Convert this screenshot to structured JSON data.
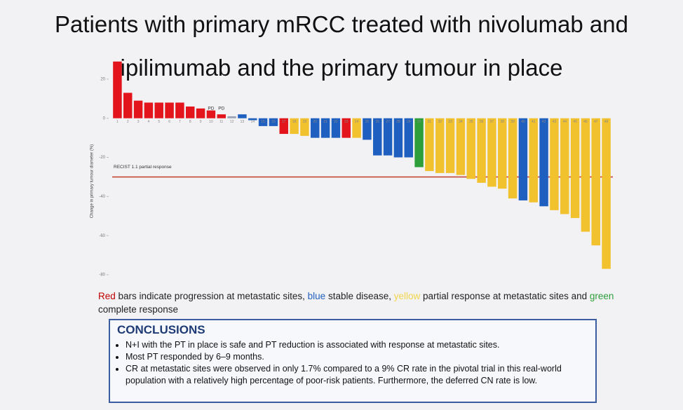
{
  "title": "Patients with primary mRCC treated with nivolumab and ipilimumab and the primary tumour in place",
  "chart_data": {
    "type": "bar",
    "y_label": "Change in primary tumour diameter (%)",
    "categories": [
      "1",
      "2",
      "3",
      "4",
      "5",
      "6",
      "7",
      "8",
      "9",
      "10",
      "11",
      "12",
      "13",
      "14",
      "15",
      "16",
      "17",
      "18",
      "19",
      "20",
      "21",
      "22",
      "23",
      "24",
      "25",
      "26",
      "27",
      "28",
      "29",
      "30",
      "31",
      "32",
      "33",
      "34",
      "35",
      "36",
      "37",
      "38",
      "39",
      "40",
      "41",
      "42",
      "43",
      "44",
      "45",
      "46",
      "47",
      "48"
    ],
    "values": [
      29,
      13,
      9,
      8,
      8,
      8,
      8,
      6,
      5,
      4,
      2,
      1,
      2,
      -1,
      -4,
      -4,
      -8,
      -8,
      -9,
      -10,
      -10,
      -10,
      -10,
      -10,
      -11,
      -19,
      -19,
      -20,
      -20,
      -25,
      -27,
      -28,
      -28,
      -29,
      -31,
      -33,
      -35,
      -36,
      -41,
      -42,
      -43,
      -45,
      -47,
      -49,
      -51,
      -58,
      -65,
      -77
    ],
    "colors": [
      "#e3141c",
      "#e3141c",
      "#e3141c",
      "#e3141c",
      "#e3141c",
      "#e3141c",
      "#e3141c",
      "#e3141c",
      "#e3141c",
      "#e3141c",
      "#e3141c",
      "#9aa3b5",
      "#1f5fbf",
      "#1f5fbf",
      "#1f5fbf",
      "#1f5fbf",
      "#e3141c",
      "#f2c12e",
      "#f2c12e",
      "#1f5fbf",
      "#1f5fbf",
      "#1f5fbf",
      "#e3141c",
      "#f2c12e",
      "#1f5fbf",
      "#1f5fbf",
      "#1f5fbf",
      "#1f5fbf",
      "#1f5fbf",
      "#2e9e3a",
      "#f2c12e",
      "#f2c12e",
      "#f2c12e",
      "#f2c12e",
      "#f2c12e",
      "#f2c12e",
      "#f2c12e",
      "#f2c12e",
      "#f2c12e",
      "#1f5fbf",
      "#f2c12e",
      "#1f5fbf",
      "#f2c12e",
      "#f2c12e",
      "#f2c12e",
      "#f2c12e",
      "#f2c12e",
      "#f2c12e"
    ],
    "ylim": [
      -80,
      30
    ],
    "yticks": [
      -80,
      -60,
      -40,
      -20,
      0,
      20
    ],
    "grid": false,
    "annotations": [
      {
        "text": "PD",
        "category": "10"
      },
      {
        "text": "PD",
        "category": "11"
      }
    ],
    "reference_line": {
      "text": "RECIST 1.1 partial response",
      "value": -30,
      "color": "#c0392b"
    }
  },
  "caption": [
    {
      "text": "Red",
      "color": "#c00000"
    },
    {
      "text": " bars indicate progression at metastatic sites, "
    },
    {
      "text": "blue",
      "color": "#1f5fbf"
    },
    {
      "text": " stable disease, "
    },
    {
      "text": "yellow",
      "color": "#f2d64b"
    },
    {
      "text": " partial response at metastatic sites and "
    },
    {
      "text": "green",
      "color": "#2e9e3a"
    },
    {
      "text": " complete response"
    }
  ],
  "conclusions": {
    "title": "CONCLUSIONS",
    "items": [
      "N+I with the PT in place is safe and PT reduction is associated with response at metastatic sites.",
      "Most PT responded by 6–9 months.",
      "CR at metastatic sites were observed in only 1.7% compared to a 9% CR rate in the pivotal trial in this real-world population with a relatively high percentage of poor-risk patients. Furthermore, the deferred CN rate is low."
    ]
  }
}
